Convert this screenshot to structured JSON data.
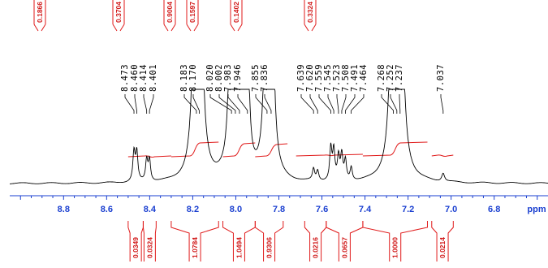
{
  "chart_data": {
    "type": "line",
    "xlabel": "ppm",
    "xlim": [
      9.05,
      6.55
    ],
    "x_reversed": true,
    "x_ticks": [
      "8.8",
      "8.6",
      "8.4",
      "8.2",
      "8.0",
      "7.8",
      "7.6",
      "7.4",
      "7.2",
      "7.0",
      "6.8"
    ],
    "peak_labels": [
      "8.473",
      "8.460",
      "8.414",
      "8.401",
      "8.183",
      "8.170",
      "8.020",
      "8.002",
      "7.983",
      "7.946",
      "7.855",
      "7.836",
      "7.639",
      "7.620",
      "7.559",
      "7.545",
      "7.523",
      "7.508",
      "7.491",
      "7.464",
      "7.268",
      "7.252",
      "7.237",
      "7.037"
    ],
    "top_integrals": [
      "0.1866",
      "0.3704",
      "0.9004",
      "0.1597",
      "0.1402",
      "0.3324"
    ],
    "bottom_integrals": [
      {
        "value": "0.0349",
        "from": 8.5,
        "to": 8.43
      },
      {
        "value": "0.0324",
        "from": 8.43,
        "to": 8.37
      },
      {
        "value": "1.0784",
        "from": 8.3,
        "to": 8.08
      },
      {
        "value": "1.0494",
        "from": 8.06,
        "to": 7.91
      },
      {
        "value": "0.9306",
        "from": 7.91,
        "to": 7.78
      },
      {
        "value": "0.0216",
        "from": 7.68,
        "to": 7.58
      },
      {
        "value": "0.0657",
        "from": 7.58,
        "to": 7.41
      },
      {
        "value": "1.0000",
        "from": 7.41,
        "to": 7.11
      },
      {
        "value": "0.0214",
        "from": 7.09,
        "to": 6.99
      }
    ],
    "colors": {
      "spectrum": "#000000",
      "integral": "#e01a1a",
      "axis": "#1a3fd0"
    }
  }
}
